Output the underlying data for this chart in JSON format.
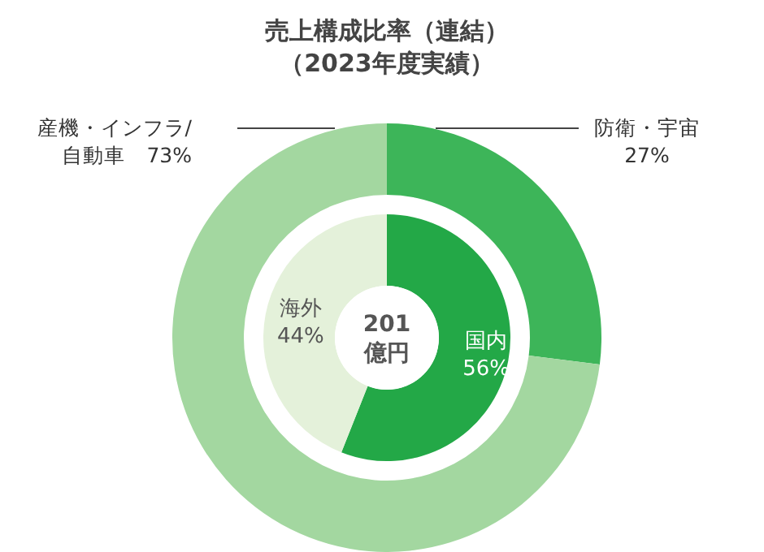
{
  "chart_data": [
    {
      "type": "donut",
      "title": "売上構成比率（連結）",
      "subtitle": "（2023年度実績）",
      "categories": [
        "防衛・宇宙",
        "産機・インフラ/自動車"
      ],
      "values": [
        27,
        73
      ],
      "colors": [
        "#3db559",
        "#a3d7a0"
      ],
      "value_labels": [
        "27%",
        "73%"
      ]
    },
    {
      "type": "donut",
      "categories": [
        "国内",
        "海外"
      ],
      "values": [
        56,
        44
      ],
      "colors": [
        "#23a847",
        "#e4f1da"
      ],
      "value_labels": [
        "56%",
        "44%"
      ],
      "annotations": [
        "201",
        "億円"
      ]
    }
  ]
}
